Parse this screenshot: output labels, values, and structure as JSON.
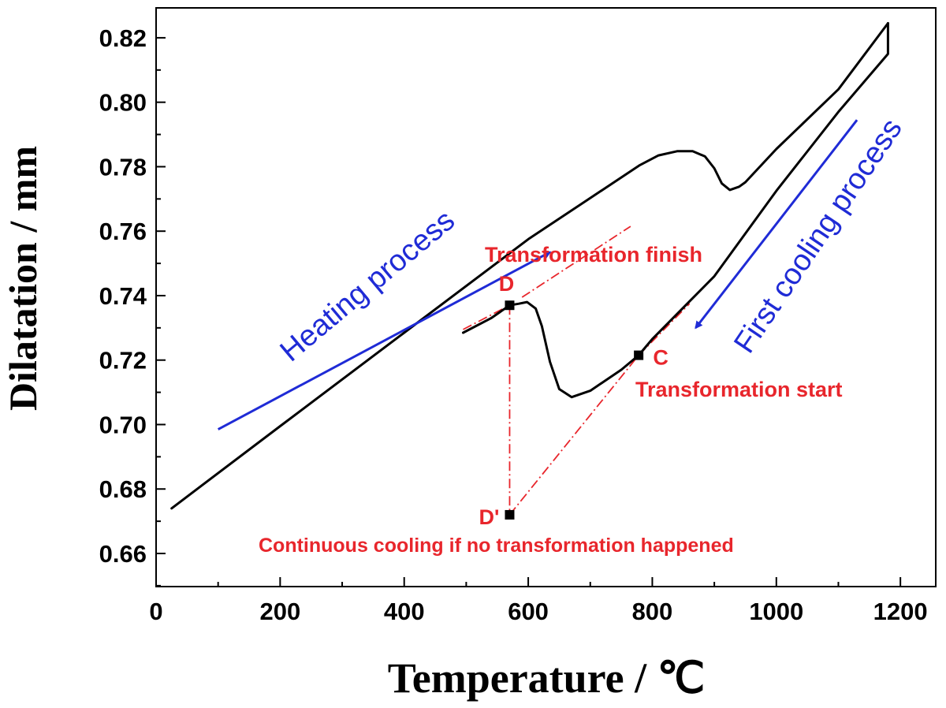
{
  "chart_data": {
    "type": "line",
    "xlabel": "Temperature / ℃",
    "ylabel": "Dilatation / mm",
    "xlim": [
      0,
      1200
    ],
    "ylim": [
      0.65,
      0.83
    ],
    "xticks": [
      0,
      200,
      400,
      600,
      800,
      1000,
      1200
    ],
    "xtick_labels": [
      "0",
      "200",
      "400",
      "600",
      "800",
      "1000",
      "1200"
    ],
    "yticks": [
      0.66,
      0.68,
      0.7,
      0.72,
      0.74,
      0.76,
      0.78,
      0.8,
      0.82
    ],
    "ytick_labels": [
      "0.66",
      "0.68",
      "0.70",
      "0.72",
      "0.74",
      "0.76",
      "0.78",
      "0.80",
      "0.82"
    ],
    "grid": false,
    "series": [
      {
        "role": "heating",
        "color": "#000000",
        "points": [
          [
            25,
            0.674
          ],
          [
            200,
            0.6995
          ],
          [
            400,
            0.7285
          ],
          [
            600,
            0.7575
          ],
          [
            780,
            0.7805
          ],
          [
            810,
            0.7835
          ],
          [
            840,
            0.7848
          ],
          [
            865,
            0.7848
          ],
          [
            885,
            0.7832
          ],
          [
            900,
            0.7795
          ],
          [
            912,
            0.7748
          ],
          [
            925,
            0.7728
          ],
          [
            940,
            0.7738
          ],
          [
            950,
            0.7752
          ],
          [
            1000,
            0.7855
          ],
          [
            1100,
            0.804
          ],
          [
            1180,
            0.8245
          ]
        ]
      },
      {
        "role": "first-cooling",
        "color": "#000000",
        "points": [
          [
            1180,
            0.8245
          ],
          [
            1180,
            0.815
          ],
          [
            1100,
            0.797
          ],
          [
            1000,
            0.7725
          ],
          [
            900,
            0.746
          ],
          [
            800,
            0.7265
          ],
          [
            778,
            0.7215
          ],
          [
            750,
            0.717
          ],
          [
            700,
            0.7105
          ],
          [
            670,
            0.7085
          ],
          [
            650,
            0.711
          ],
          [
            635,
            0.7195
          ],
          [
            622,
            0.7305
          ],
          [
            612,
            0.736
          ],
          [
            598,
            0.738
          ],
          [
            585,
            0.7375
          ],
          [
            570,
            0.737
          ],
          [
            540,
            0.733
          ],
          [
            495,
            0.7285
          ]
        ]
      }
    ],
    "guide_lines": [
      {
        "from": [
          590,
          0.7395
        ],
        "to": [
          765,
          0.7615
        ]
      },
      {
        "from": [
          495,
          0.7295
        ],
        "to": [
          570,
          0.737
        ]
      },
      {
        "from": [
          570,
          0.737
        ],
        "to": [
          570,
          0.672
        ]
      },
      {
        "from": [
          570,
          0.672
        ],
        "to": [
          778,
          0.7215
        ]
      },
      {
        "from": [
          778,
          0.7215
        ],
        "to": [
          860,
          0.7375
        ]
      }
    ],
    "markers": [
      {
        "label": "D",
        "x": 570,
        "y": 0.737
      },
      {
        "label": "C",
        "x": 778,
        "y": 0.7215
      },
      {
        "label": "D'",
        "x": 570,
        "y": 0.672
      }
    ],
    "annotations": {
      "heating": "Heating process",
      "cooling": "First cooling process",
      "finish": "Transformation finish",
      "start": "Transformation start",
      "continuous": "Continuous cooling if no transformation happened"
    },
    "arrows": [
      {
        "role": "heating",
        "from": [
          100,
          0.6985
        ],
        "to": [
          635,
          0.7535
        ]
      },
      {
        "role": "cooling",
        "from": [
          1130,
          0.7945
        ],
        "to": [
          870,
          0.73
        ]
      }
    ],
    "colors": {
      "curve": "#000000",
      "annotation_red": "#e8262c",
      "annotation_blue": "#1f2bd6"
    }
  }
}
